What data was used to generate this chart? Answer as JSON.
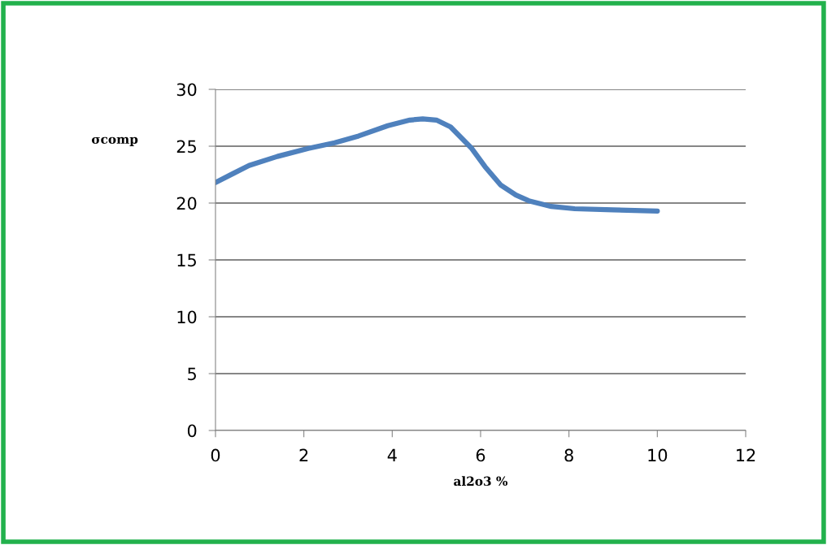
{
  "chart_data": {
    "type": "line",
    "xlabel": "al2o3 %",
    "ylabel": "σcomp",
    "series": [
      {
        "color": "#4f81bd",
        "x": [
          0,
          0.4,
          0.76,
          1.4,
          2.1,
          2.7,
          3.24,
          3.9,
          4.4,
          4.69,
          5.0,
          5.32,
          5.8,
          6.1,
          6.45,
          6.8,
          7.09,
          7.6,
          8.13,
          9.0,
          10.0
        ],
        "values": [
          21.8,
          22.6,
          23.3,
          24.1,
          24.8,
          25.3,
          25.9,
          26.8,
          27.3,
          27.4,
          27.3,
          26.7,
          24.8,
          23.2,
          21.6,
          20.7,
          20.2,
          19.7,
          19.5,
          19.4,
          19.3
        ]
      }
    ],
    "xlim": [
      0,
      12
    ],
    "xticks": [
      0,
      2,
      4,
      6,
      8,
      10,
      12
    ],
    "ylim": [
      0,
      30
    ],
    "yticks": [
      0,
      5,
      10,
      15,
      20,
      25,
      30
    ],
    "grid": "y",
    "legend": false,
    "marker": "none",
    "line_style": "solid"
  }
}
